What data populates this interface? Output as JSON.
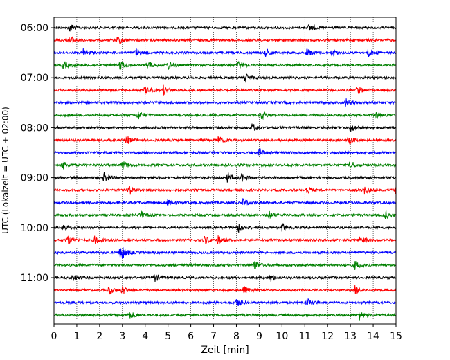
{
  "chart_data": {
    "type": "line",
    "subtype": "helicorder",
    "xlabel": "Zeit  [min]",
    "ylabel": "UTC (Lokalzeit = UTC + 02:00)",
    "xlim": [
      0,
      15
    ],
    "x_ticks": [
      "0",
      "1",
      "2",
      "3",
      "4",
      "5",
      "6",
      "7",
      "8",
      "9",
      "10",
      "11",
      "12",
      "13",
      "14",
      "15"
    ],
    "y_tick_labels": [
      "06:00",
      "07:00",
      "08:00",
      "09:00",
      "10:00",
      "11:00"
    ],
    "grid": "vertical dotted at each minute",
    "row_minutes": 15,
    "trace_colors": [
      "#000000",
      "#ff0000",
      "#0000ff",
      "#008000"
    ],
    "rows": [
      {
        "start": "06:00",
        "events": [
          0.7,
          11.2
        ]
      },
      {
        "start": "06:15",
        "events": [
          0.7,
          2.8
        ]
      },
      {
        "start": "06:30",
        "events": [
          1.3,
          3.6,
          9.3,
          11.1,
          12.2,
          13.8
        ]
      },
      {
        "start": "06:45",
        "events": [
          0.4,
          2.9,
          4.1,
          5.0,
          8.1
        ]
      },
      {
        "start": "07:00",
        "events": [
          8.4
        ]
      },
      {
        "start": "07:15",
        "events": [
          4.0,
          4.8,
          13.3
        ]
      },
      {
        "start": "07:30",
        "events": [
          12.8
        ]
      },
      {
        "start": "07:45",
        "events": [
          3.7,
          9.1,
          14.1
        ]
      },
      {
        "start": "08:00",
        "events": [
          8.7,
          13.0
        ]
      },
      {
        "start": "08:15",
        "events": [
          3.2,
          7.2,
          12.9
        ]
      },
      {
        "start": "08:30",
        "events": [
          9.0
        ]
      },
      {
        "start": "08:45",
        "events": [
          0.4,
          3.0,
          13.0
        ]
      },
      {
        "start": "09:00",
        "events": [
          2.2,
          7.6,
          8.2
        ]
      },
      {
        "start": "09:15",
        "events": [
          3.3,
          11.1,
          13.6,
          15.0
        ]
      },
      {
        "start": "09:30",
        "events": [
          5.0,
          8.3
        ]
      },
      {
        "start": "09:45",
        "events": [
          3.8,
          9.4,
          14.5
        ]
      },
      {
        "start": "10:00",
        "events": [
          0.4,
          8.1,
          10.0
        ]
      },
      {
        "start": "10:15",
        "events": [
          0.6,
          1.8,
          6.6,
          7.2,
          13.4
        ]
      },
      {
        "start": "10:30",
        "events": [
          2.9,
          3.0
        ]
      },
      {
        "start": "10:45",
        "events": [
          8.8,
          13.2
        ]
      },
      {
        "start": "11:00",
        "events": [
          0.8,
          4.4,
          9.5
        ]
      },
      {
        "start": "11:15",
        "events": [
          2.4,
          3.0,
          8.3,
          13.2
        ]
      },
      {
        "start": "11:30",
        "events": [
          8.0,
          11.1
        ]
      },
      {
        "start": "11:45",
        "events": [
          3.3,
          13.4
        ]
      }
    ]
  }
}
